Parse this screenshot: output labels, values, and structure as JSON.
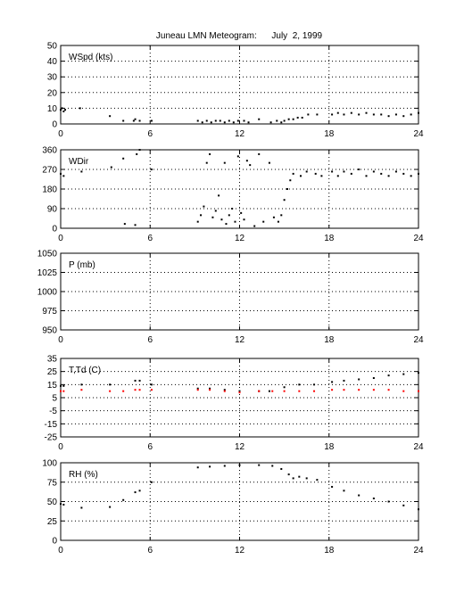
{
  "title": "Juneau LMN Meteogram:      July  2, 1999",
  "chart_data": [
    {
      "type": "scatter",
      "label": "WSpd (kts)",
      "xlim": [
        0,
        24
      ],
      "ylim": [
        0,
        50
      ],
      "xticks": [
        0,
        6,
        12,
        18,
        24
      ],
      "yticks": [
        0,
        10,
        20,
        30,
        40,
        50
      ],
      "grid": true,
      "series": [
        {
          "color": "#000000",
          "points": [
            [
              0.0,
              9
            ],
            [
              0.1,
              10
            ],
            [
              0.2,
              8
            ],
            [
              0.3,
              9
            ],
            [
              1.3,
              10
            ],
            [
              3.3,
              5
            ],
            [
              4.2,
              2
            ],
            [
              4.9,
              2
            ],
            [
              5.0,
              3
            ],
            [
              5.3,
              2
            ],
            [
              6.1,
              2
            ],
            [
              9.2,
              2
            ],
            [
              9.5,
              1
            ],
            [
              9.8,
              2
            ],
            [
              10.1,
              1
            ],
            [
              10.4,
              2
            ],
            [
              10.7,
              2
            ],
            [
              11.0,
              1
            ],
            [
              11.3,
              2
            ],
            [
              11.6,
              1
            ],
            [
              11.9,
              2
            ],
            [
              12.3,
              2
            ],
            [
              12.6,
              1
            ],
            [
              13.3,
              3
            ],
            [
              14.1,
              1
            ],
            [
              14.5,
              2
            ],
            [
              14.8,
              1
            ],
            [
              15.0,
              2
            ],
            [
              15.3,
              3
            ],
            [
              15.6,
              3
            ],
            [
              15.9,
              4
            ],
            [
              16.2,
              4
            ],
            [
              16.6,
              6
            ],
            [
              17.2,
              6
            ],
            [
              18.2,
              6
            ],
            [
              18.6,
              7
            ],
            [
              19.0,
              6
            ],
            [
              19.5,
              7
            ],
            [
              20.0,
              6
            ],
            [
              20.5,
              7
            ],
            [
              21.0,
              6
            ],
            [
              21.5,
              6
            ],
            [
              22.0,
              5
            ],
            [
              22.5,
              6
            ],
            [
              23.0,
              5
            ],
            [
              23.5,
              6
            ],
            [
              24.0,
              7
            ]
          ]
        }
      ]
    },
    {
      "type": "scatter",
      "label": "WDir",
      "xlim": [
        0,
        24
      ],
      "ylim": [
        0,
        360
      ],
      "xticks": [
        0,
        6,
        12,
        18,
        24
      ],
      "yticks": [
        0,
        90,
        180,
        270,
        360
      ],
      "grid": true,
      "series": [
        {
          "color": "#000000",
          "points": [
            [
              0.0,
              250
            ],
            [
              0.2,
              240
            ],
            [
              1.4,
              260
            ],
            [
              3.4,
              280
            ],
            [
              4.2,
              320
            ],
            [
              4.3,
              20
            ],
            [
              5.0,
              15
            ],
            [
              5.1,
              340
            ],
            [
              5.3,
              360
            ],
            [
              6.1,
              270
            ],
            [
              9.2,
              30
            ],
            [
              9.4,
              60
            ],
            [
              9.6,
              100
            ],
            [
              9.8,
              300
            ],
            [
              10.0,
              340
            ],
            [
              10.2,
              50
            ],
            [
              10.4,
              80
            ],
            [
              10.6,
              150
            ],
            [
              10.8,
              40
            ],
            [
              11.0,
              300
            ],
            [
              11.1,
              20
            ],
            [
              11.3,
              60
            ],
            [
              11.5,
              90
            ],
            [
              11.7,
              30
            ],
            [
              11.9,
              330
            ],
            [
              12.1,
              70
            ],
            [
              12.3,
              40
            ],
            [
              12.5,
              310
            ],
            [
              12.7,
              290
            ],
            [
              13.0,
              10
            ],
            [
              13.3,
              340
            ],
            [
              13.6,
              30
            ],
            [
              14.0,
              300
            ],
            [
              14.3,
              50
            ],
            [
              14.6,
              30
            ],
            [
              14.8,
              60
            ],
            [
              15.0,
              130
            ],
            [
              15.2,
              180
            ],
            [
              15.4,
              220
            ],
            [
              15.6,
              250
            ],
            [
              16.1,
              240
            ],
            [
              16.5,
              260
            ],
            [
              17.1,
              250
            ],
            [
              17.5,
              240
            ],
            [
              18.2,
              260
            ],
            [
              18.6,
              240
            ],
            [
              19.0,
              260
            ],
            [
              19.5,
              250
            ],
            [
              20.0,
              270
            ],
            [
              20.5,
              240
            ],
            [
              21.0,
              260
            ],
            [
              21.5,
              250
            ],
            [
              22.0,
              240
            ],
            [
              22.5,
              260
            ],
            [
              23.0,
              250
            ],
            [
              23.5,
              240
            ],
            [
              24.0,
              250
            ]
          ]
        }
      ]
    },
    {
      "type": "scatter",
      "label": "P (mb)",
      "xlim": [
        0,
        24
      ],
      "ylim": [
        950,
        1050
      ],
      "xticks": [
        0,
        6,
        12,
        18,
        24
      ],
      "yticks": [
        950,
        975,
        1000,
        1025,
        1050
      ],
      "grid": true,
      "series": []
    },
    {
      "type": "scatter",
      "label": "T,Td (C)",
      "xlim": [
        0,
        24
      ],
      "ylim": [
        -25,
        35
      ],
      "xticks": [
        0,
        6,
        12,
        18,
        24
      ],
      "yticks": [
        -25,
        -15,
        -5,
        5,
        15,
        25,
        35
      ],
      "grid": true,
      "series": [
        {
          "color": "#000000",
          "points": [
            [
              0.0,
              14
            ],
            [
              0.2,
              14
            ],
            [
              1.4,
              15
            ],
            [
              3.3,
              15
            ],
            [
              5.0,
              18
            ],
            [
              5.3,
              18
            ],
            [
              6.1,
              15
            ],
            [
              9.2,
              12
            ],
            [
              10.0,
              12
            ],
            [
              11.0,
              11
            ],
            [
              12.0,
              10
            ],
            [
              13.3,
              10
            ],
            [
              14.0,
              10
            ],
            [
              15.0,
              13
            ],
            [
              16.0,
              15
            ],
            [
              17.0,
              15
            ],
            [
              18.2,
              17
            ],
            [
              19.0,
              18
            ],
            [
              20.0,
              19
            ],
            [
              21.0,
              20
            ],
            [
              22.0,
              22
            ],
            [
              23.0,
              23
            ],
            [
              24.0,
              24
            ]
          ]
        },
        {
          "color": "#ff0000",
          "points": [
            [
              0.0,
              10
            ],
            [
              0.2,
              10
            ],
            [
              1.4,
              11
            ],
            [
              3.3,
              10
            ],
            [
              4.2,
              10
            ],
            [
              5.0,
              11
            ],
            [
              5.3,
              11
            ],
            [
              6.1,
              11
            ],
            [
              9.2,
              11
            ],
            [
              10.0,
              11
            ],
            [
              11.0,
              10
            ],
            [
              12.0,
              9
            ],
            [
              13.3,
              10
            ],
            [
              14.2,
              10
            ],
            [
              15.0,
              10
            ],
            [
              16.0,
              10
            ],
            [
              17.0,
              10
            ],
            [
              18.2,
              11
            ],
            [
              19.0,
              11
            ],
            [
              20.0,
              11
            ],
            [
              21.0,
              11
            ],
            [
              22.0,
              11
            ],
            [
              23.0,
              10
            ],
            [
              24.0,
              10
            ]
          ]
        }
      ]
    },
    {
      "type": "scatter",
      "label": "RH (%)",
      "xlim": [
        0,
        24
      ],
      "ylim": [
        0,
        100
      ],
      "xticks": [
        0,
        6,
        12,
        18,
        24
      ],
      "yticks": [
        0,
        25,
        50,
        75,
        100
      ],
      "grid": true,
      "series": [
        {
          "color": "#000000",
          "points": [
            [
              0.0,
              47
            ],
            [
              0.2,
              46
            ],
            [
              1.4,
              42
            ],
            [
              3.3,
              43
            ],
            [
              4.2,
              52
            ],
            [
              5.0,
              62
            ],
            [
              5.3,
              64
            ],
            [
              6.1,
              75
            ],
            [
              9.2,
              94
            ],
            [
              10.0,
              95
            ],
            [
              11.0,
              96
            ],
            [
              12.0,
              97
            ],
            [
              13.3,
              97
            ],
            [
              14.2,
              96
            ],
            [
              14.8,
              92
            ],
            [
              15.3,
              85
            ],
            [
              15.6,
              80
            ],
            [
              16.0,
              82
            ],
            [
              16.5,
              80
            ],
            [
              17.2,
              78
            ],
            [
              18.2,
              69
            ],
            [
              19.0,
              64
            ],
            [
              20.0,
              58
            ],
            [
              21.0,
              54
            ],
            [
              22.0,
              50
            ],
            [
              23.0,
              45
            ],
            [
              24.0,
              40
            ]
          ]
        }
      ]
    }
  ]
}
